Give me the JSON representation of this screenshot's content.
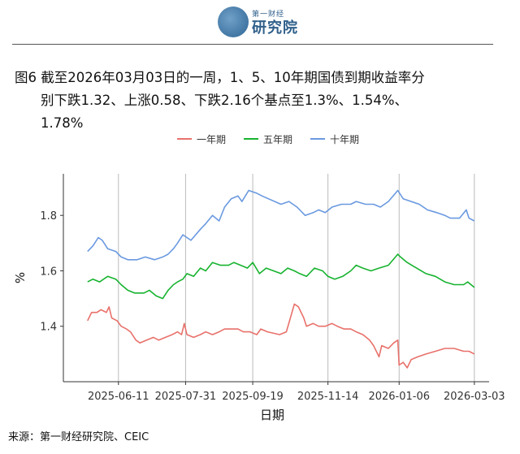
{
  "header": {
    "logo_small": "第一财经",
    "logo_main": "研究院",
    "logo_icon": "yicai-logo-icon"
  },
  "caption": {
    "line1": "图6  截至2026年03月03日的一周，1、5、10年期国债到期收益率分",
    "line2": "别下跌1.32、上涨0.58、下跌2.16个基点至1.3%、1.54%、",
    "line3": "1.78%"
  },
  "footer": {
    "source": "来源：第一财经研究院、CEIC"
  },
  "colors": {
    "one_year": "#e8716b",
    "five_year": "#17b32f",
    "ten_year": "#6a99e0",
    "grid": "#bbbbbb",
    "axis": "#333333"
  },
  "chart_data": {
    "type": "line",
    "title": "",
    "xlabel": "日期",
    "ylabel": "%",
    "x_tick_labels": [
      "2025-06-11",
      "2025-07-31",
      "2025-09-19",
      "2025-11-14",
      "2026-01-06",
      "2026-03-03"
    ],
    "y_ticks": [
      1.4,
      1.6,
      1.8
    ],
    "ylim": [
      1.2,
      1.95
    ],
    "grid": "vertical",
    "legend_position": "top",
    "series": [
      {
        "name": "一年期",
        "color": "#e8716b",
        "points": [
          [
            "2025-05-19",
            1.42
          ],
          [
            "2025-05-22",
            1.45
          ],
          [
            "2025-05-26",
            1.45
          ],
          [
            "2025-05-29",
            1.46
          ],
          [
            "2025-06-02",
            1.45
          ],
          [
            "2025-06-04",
            1.47
          ],
          [
            "2025-06-06",
            1.43
          ],
          [
            "2025-06-10",
            1.42
          ],
          [
            "2025-06-13",
            1.4
          ],
          [
            "2025-06-17",
            1.39
          ],
          [
            "2025-06-20",
            1.38
          ],
          [
            "2025-06-24",
            1.35
          ],
          [
            "2025-06-27",
            1.34
          ],
          [
            "2025-07-02",
            1.35
          ],
          [
            "2025-07-07",
            1.36
          ],
          [
            "2025-07-11",
            1.35
          ],
          [
            "2025-07-16",
            1.36
          ],
          [
            "2025-07-21",
            1.37
          ],
          [
            "2025-07-25",
            1.38
          ],
          [
            "2025-07-28",
            1.37
          ],
          [
            "2025-07-30",
            1.41
          ],
          [
            "2025-08-01",
            1.37
          ],
          [
            "2025-08-06",
            1.36
          ],
          [
            "2025-08-11",
            1.37
          ],
          [
            "2025-08-15",
            1.38
          ],
          [
            "2025-08-20",
            1.37
          ],
          [
            "2025-08-25",
            1.38
          ],
          [
            "2025-08-29",
            1.39
          ],
          [
            "2025-09-03",
            1.39
          ],
          [
            "2025-09-08",
            1.39
          ],
          [
            "2025-09-12",
            1.38
          ],
          [
            "2025-09-17",
            1.38
          ],
          [
            "2025-09-22",
            1.37
          ],
          [
            "2025-09-25",
            1.39
          ],
          [
            "2025-09-30",
            1.38
          ],
          [
            "2025-10-09",
            1.37
          ],
          [
            "2025-10-14",
            1.38
          ],
          [
            "2025-10-17",
            1.43
          ],
          [
            "2025-10-20",
            1.48
          ],
          [
            "2025-10-23",
            1.47
          ],
          [
            "2025-10-27",
            1.43
          ],
          [
            "2025-10-29",
            1.4
          ],
          [
            "2025-11-03",
            1.41
          ],
          [
            "2025-11-07",
            1.4
          ],
          [
            "2025-11-12",
            1.4
          ],
          [
            "2025-11-17",
            1.41
          ],
          [
            "2025-11-21",
            1.4
          ],
          [
            "2025-11-26",
            1.39
          ],
          [
            "2025-12-01",
            1.39
          ],
          [
            "2025-12-05",
            1.38
          ],
          [
            "2025-12-10",
            1.37
          ],
          [
            "2025-12-15",
            1.35
          ],
          [
            "2025-12-18",
            1.33
          ],
          [
            "2025-12-22",
            1.29
          ],
          [
            "2025-12-24",
            1.33
          ],
          [
            "2025-12-29",
            1.32
          ],
          [
            "2026-01-02",
            1.34
          ],
          [
            "2026-01-05",
            1.35
          ],
          [
            "2026-01-06",
            1.26
          ],
          [
            "2026-01-09",
            1.27
          ],
          [
            "2026-01-12",
            1.25
          ],
          [
            "2026-01-15",
            1.28
          ],
          [
            "2026-01-20",
            1.29
          ],
          [
            "2026-01-26",
            1.3
          ],
          [
            "2026-02-02",
            1.31
          ],
          [
            "2026-02-09",
            1.32
          ],
          [
            "2026-02-16",
            1.32
          ],
          [
            "2026-02-23",
            1.31
          ],
          [
            "2026-02-27",
            1.31
          ],
          [
            "2026-03-03",
            1.3
          ]
        ]
      },
      {
        "name": "五年期",
        "color": "#17b32f",
        "points": [
          [
            "2025-05-19",
            1.56
          ],
          [
            "2025-05-23",
            1.57
          ],
          [
            "2025-05-28",
            1.56
          ],
          [
            "2025-06-03",
            1.58
          ],
          [
            "2025-06-09",
            1.57
          ],
          [
            "2025-06-13",
            1.55
          ],
          [
            "2025-06-18",
            1.53
          ],
          [
            "2025-06-23",
            1.52
          ],
          [
            "2025-06-30",
            1.52
          ],
          [
            "2025-07-04",
            1.53
          ],
          [
            "2025-07-09",
            1.51
          ],
          [
            "2025-07-14",
            1.5
          ],
          [
            "2025-07-18",
            1.53
          ],
          [
            "2025-07-22",
            1.55
          ],
          [
            "2025-07-25",
            1.56
          ],
          [
            "2025-07-29",
            1.57
          ],
          [
            "2025-08-01",
            1.59
          ],
          [
            "2025-08-06",
            1.58
          ],
          [
            "2025-08-11",
            1.61
          ],
          [
            "2025-08-15",
            1.6
          ],
          [
            "2025-08-20",
            1.63
          ],
          [
            "2025-08-26",
            1.62
          ],
          [
            "2025-09-01",
            1.62
          ],
          [
            "2025-09-05",
            1.63
          ],
          [
            "2025-09-10",
            1.62
          ],
          [
            "2025-09-15",
            1.61
          ],
          [
            "2025-09-19",
            1.63
          ],
          [
            "2025-09-24",
            1.59
          ],
          [
            "2025-09-29",
            1.61
          ],
          [
            "2025-10-10",
            1.59
          ],
          [
            "2025-10-15",
            1.61
          ],
          [
            "2025-10-20",
            1.6
          ],
          [
            "2025-10-24",
            1.59
          ],
          [
            "2025-10-29",
            1.58
          ],
          [
            "2025-11-04",
            1.61
          ],
          [
            "2025-11-10",
            1.6
          ],
          [
            "2025-11-14",
            1.58
          ],
          [
            "2025-11-19",
            1.57
          ],
          [
            "2025-11-25",
            1.58
          ],
          [
            "2025-12-01",
            1.6
          ],
          [
            "2025-12-05",
            1.62
          ],
          [
            "2025-12-10",
            1.61
          ],
          [
            "2025-12-16",
            1.6
          ],
          [
            "2025-12-22",
            1.61
          ],
          [
            "2025-12-29",
            1.62
          ],
          [
            "2026-01-05",
            1.66
          ],
          [
            "2026-01-07",
            1.65
          ],
          [
            "2026-01-12",
            1.63
          ],
          [
            "2026-01-19",
            1.61
          ],
          [
            "2026-01-26",
            1.59
          ],
          [
            "2026-02-02",
            1.58
          ],
          [
            "2026-02-09",
            1.56
          ],
          [
            "2026-02-16",
            1.55
          ],
          [
            "2026-02-23",
            1.55
          ],
          [
            "2026-02-26",
            1.56
          ],
          [
            "2026-03-03",
            1.54
          ]
        ]
      },
      {
        "name": "十年期",
        "color": "#6a99e0",
        "points": [
          [
            "2025-05-19",
            1.67
          ],
          [
            "2025-05-23",
            1.69
          ],
          [
            "2025-05-27",
            1.72
          ],
          [
            "2025-05-30",
            1.71
          ],
          [
            "2025-06-03",
            1.68
          ],
          [
            "2025-06-09",
            1.67
          ],
          [
            "2025-06-13",
            1.65
          ],
          [
            "2025-06-18",
            1.64
          ],
          [
            "2025-06-25",
            1.64
          ],
          [
            "2025-07-01",
            1.65
          ],
          [
            "2025-07-08",
            1.64
          ],
          [
            "2025-07-14",
            1.65
          ],
          [
            "2025-07-18",
            1.66
          ],
          [
            "2025-07-22",
            1.68
          ],
          [
            "2025-07-25",
            1.7
          ],
          [
            "2025-07-29",
            1.73
          ],
          [
            "2025-08-04",
            1.71
          ],
          [
            "2025-08-11",
            1.75
          ],
          [
            "2025-08-15",
            1.77
          ],
          [
            "2025-08-20",
            1.8
          ],
          [
            "2025-08-25",
            1.78
          ],
          [
            "2025-08-29",
            1.83
          ],
          [
            "2025-09-03",
            1.86
          ],
          [
            "2025-09-08",
            1.87
          ],
          [
            "2025-09-11",
            1.85
          ],
          [
            "2025-09-16",
            1.89
          ],
          [
            "2025-09-22",
            1.88
          ],
          [
            "2025-09-26",
            1.87
          ],
          [
            "2025-10-10",
            1.84
          ],
          [
            "2025-10-16",
            1.85
          ],
          [
            "2025-10-22",
            1.83
          ],
          [
            "2025-10-28",
            1.8
          ],
          [
            "2025-11-03",
            1.81
          ],
          [
            "2025-11-07",
            1.82
          ],
          [
            "2025-11-12",
            1.81
          ],
          [
            "2025-11-17",
            1.83
          ],
          [
            "2025-11-24",
            1.84
          ],
          [
            "2025-12-01",
            1.84
          ],
          [
            "2025-12-05",
            1.85
          ],
          [
            "2025-12-12",
            1.84
          ],
          [
            "2025-12-18",
            1.84
          ],
          [
            "2025-12-23",
            1.83
          ],
          [
            "2025-12-29",
            1.85
          ],
          [
            "2026-01-05",
            1.89
          ],
          [
            "2026-01-09",
            1.86
          ],
          [
            "2026-01-15",
            1.85
          ],
          [
            "2026-01-21",
            1.84
          ],
          [
            "2026-01-27",
            1.82
          ],
          [
            "2026-02-03",
            1.81
          ],
          [
            "2026-02-09",
            1.8
          ],
          [
            "2026-02-13",
            1.79
          ],
          [
            "2026-02-20",
            1.79
          ],
          [
            "2026-02-25",
            1.82
          ],
          [
            "2026-02-27",
            1.79
          ],
          [
            "2026-03-03",
            1.78
          ]
        ]
      }
    ]
  }
}
